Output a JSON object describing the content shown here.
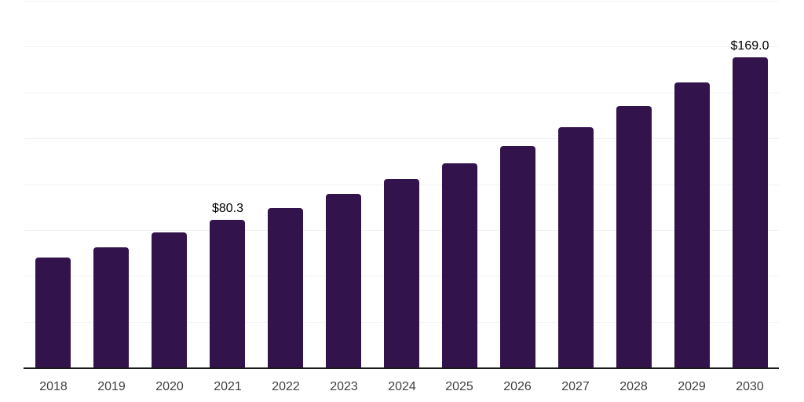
{
  "chart_data": {
    "type": "bar",
    "title": "",
    "xlabel": "",
    "ylabel": "",
    "categories": [
      "2018",
      "2019",
      "2020",
      "2021",
      "2022",
      "2023",
      "2024",
      "2025",
      "2026",
      "2027",
      "2028",
      "2029",
      "2030"
    ],
    "values": [
      60.0,
      65.4,
      73.8,
      80.3,
      87.0,
      94.5,
      102.7,
      111.3,
      120.6,
      131.2,
      142.6,
      155.4,
      169.0
    ],
    "data_labels": {
      "2021": "$80.3",
      "2030": "$169.0"
    },
    "ylim": [
      0,
      200
    ],
    "gridline_step": 25,
    "grid": "on",
    "legend": "none",
    "colors": {
      "bar": "#33134c",
      "gridline": "#f2f2f2",
      "axis": "#1a1a1a",
      "tick_label": "#404040",
      "value_label": "#000000",
      "background": "#ffffff"
    }
  }
}
